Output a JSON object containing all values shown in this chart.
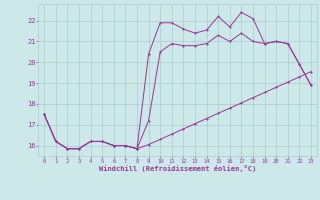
{
  "xlabel": "Windchill (Refroidissement éolien,°C)",
  "bg_color": "#cce8e8",
  "line_color": "#993399",
  "grid_color": "#aacccc",
  "xlim_min": -0.5,
  "xlim_max": 23.5,
  "ylim_min": 15.5,
  "ylim_max": 22.8,
  "xticks": [
    0,
    1,
    2,
    3,
    4,
    5,
    6,
    7,
    8,
    9,
    10,
    11,
    12,
    13,
    14,
    15,
    16,
    17,
    18,
    19,
    20,
    21,
    22,
    23
  ],
  "yticks": [
    16,
    17,
    18,
    19,
    20,
    21,
    22
  ],
  "line_top_x": [
    0,
    1,
    2,
    3,
    4,
    5,
    6,
    7,
    8,
    9,
    10,
    11,
    12,
    13,
    14,
    15,
    16,
    17,
    18,
    19,
    20,
    21,
    22,
    23
  ],
  "line_top_y": [
    17.5,
    16.2,
    15.85,
    15.85,
    16.2,
    16.2,
    16.0,
    16.0,
    15.85,
    20.4,
    21.9,
    21.9,
    21.6,
    21.4,
    21.55,
    22.2,
    21.7,
    22.4,
    22.1,
    20.9,
    21.0,
    20.9,
    19.9,
    18.9
  ],
  "line_mid_x": [
    0,
    1,
    2,
    3,
    4,
    5,
    6,
    7,
    8,
    9,
    10,
    11,
    12,
    13,
    14,
    15,
    16,
    17,
    18,
    19,
    20,
    21,
    22,
    23
  ],
  "line_mid_y": [
    17.5,
    16.2,
    15.85,
    15.85,
    16.2,
    16.2,
    16.0,
    16.0,
    15.85,
    17.2,
    20.5,
    20.9,
    20.8,
    20.8,
    20.9,
    21.3,
    21.0,
    21.4,
    21.0,
    20.9,
    21.0,
    20.9,
    19.9,
    18.9
  ],
  "line_bot_x": [
    0,
    1,
    2,
    3,
    4,
    5,
    6,
    7,
    8,
    9,
    10,
    11,
    12,
    13,
    14,
    15,
    16,
    17,
    18,
    19,
    20,
    21,
    22,
    23
  ],
  "line_bot_y": [
    17.5,
    16.2,
    15.85,
    15.85,
    16.2,
    16.2,
    16.0,
    16.0,
    15.85,
    16.05,
    16.3,
    16.55,
    16.8,
    17.05,
    17.3,
    17.55,
    17.8,
    18.05,
    18.3,
    18.55,
    18.8,
    19.05,
    19.3,
    19.55
  ]
}
